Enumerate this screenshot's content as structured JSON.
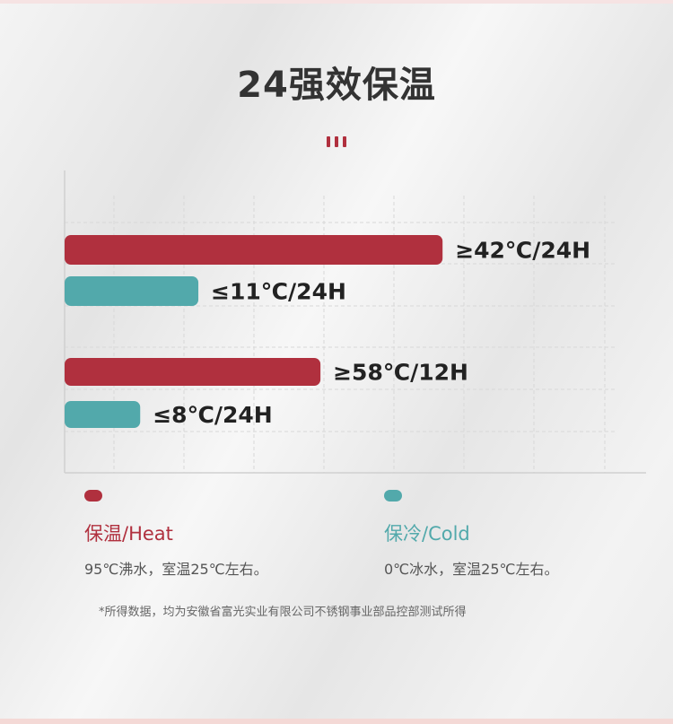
{
  "title": "24强效保温",
  "colors": {
    "heat": "#b0303e",
    "cold": "#52a9ab",
    "title": "#333333"
  },
  "chart_data": {
    "type": "bar",
    "orientation": "horizontal",
    "grid": true,
    "bars": [
      {
        "series": "heat",
        "label": "≥42℃/24H",
        "fill_pct": 65
      },
      {
        "series": "cold",
        "label": "≤11℃/24H",
        "fill_pct": 23
      },
      {
        "series": "heat",
        "label": "≥58℃/12H",
        "fill_pct": 44
      },
      {
        "series": "cold",
        "label": "≤8℃/24H",
        "fill_pct": 13
      }
    ]
  },
  "legend": [
    {
      "key": "heat",
      "title": "保温/Heat",
      "desc": "95℃沸水，室温25℃左右。"
    },
    {
      "key": "cold",
      "title": "保冷/Cold",
      "desc": "0℃冰水，室温25℃左右。"
    }
  ],
  "footnote": "*所得数据，均为安徽省富光实业有限公司不锈钢事业部品控部测试所得"
}
